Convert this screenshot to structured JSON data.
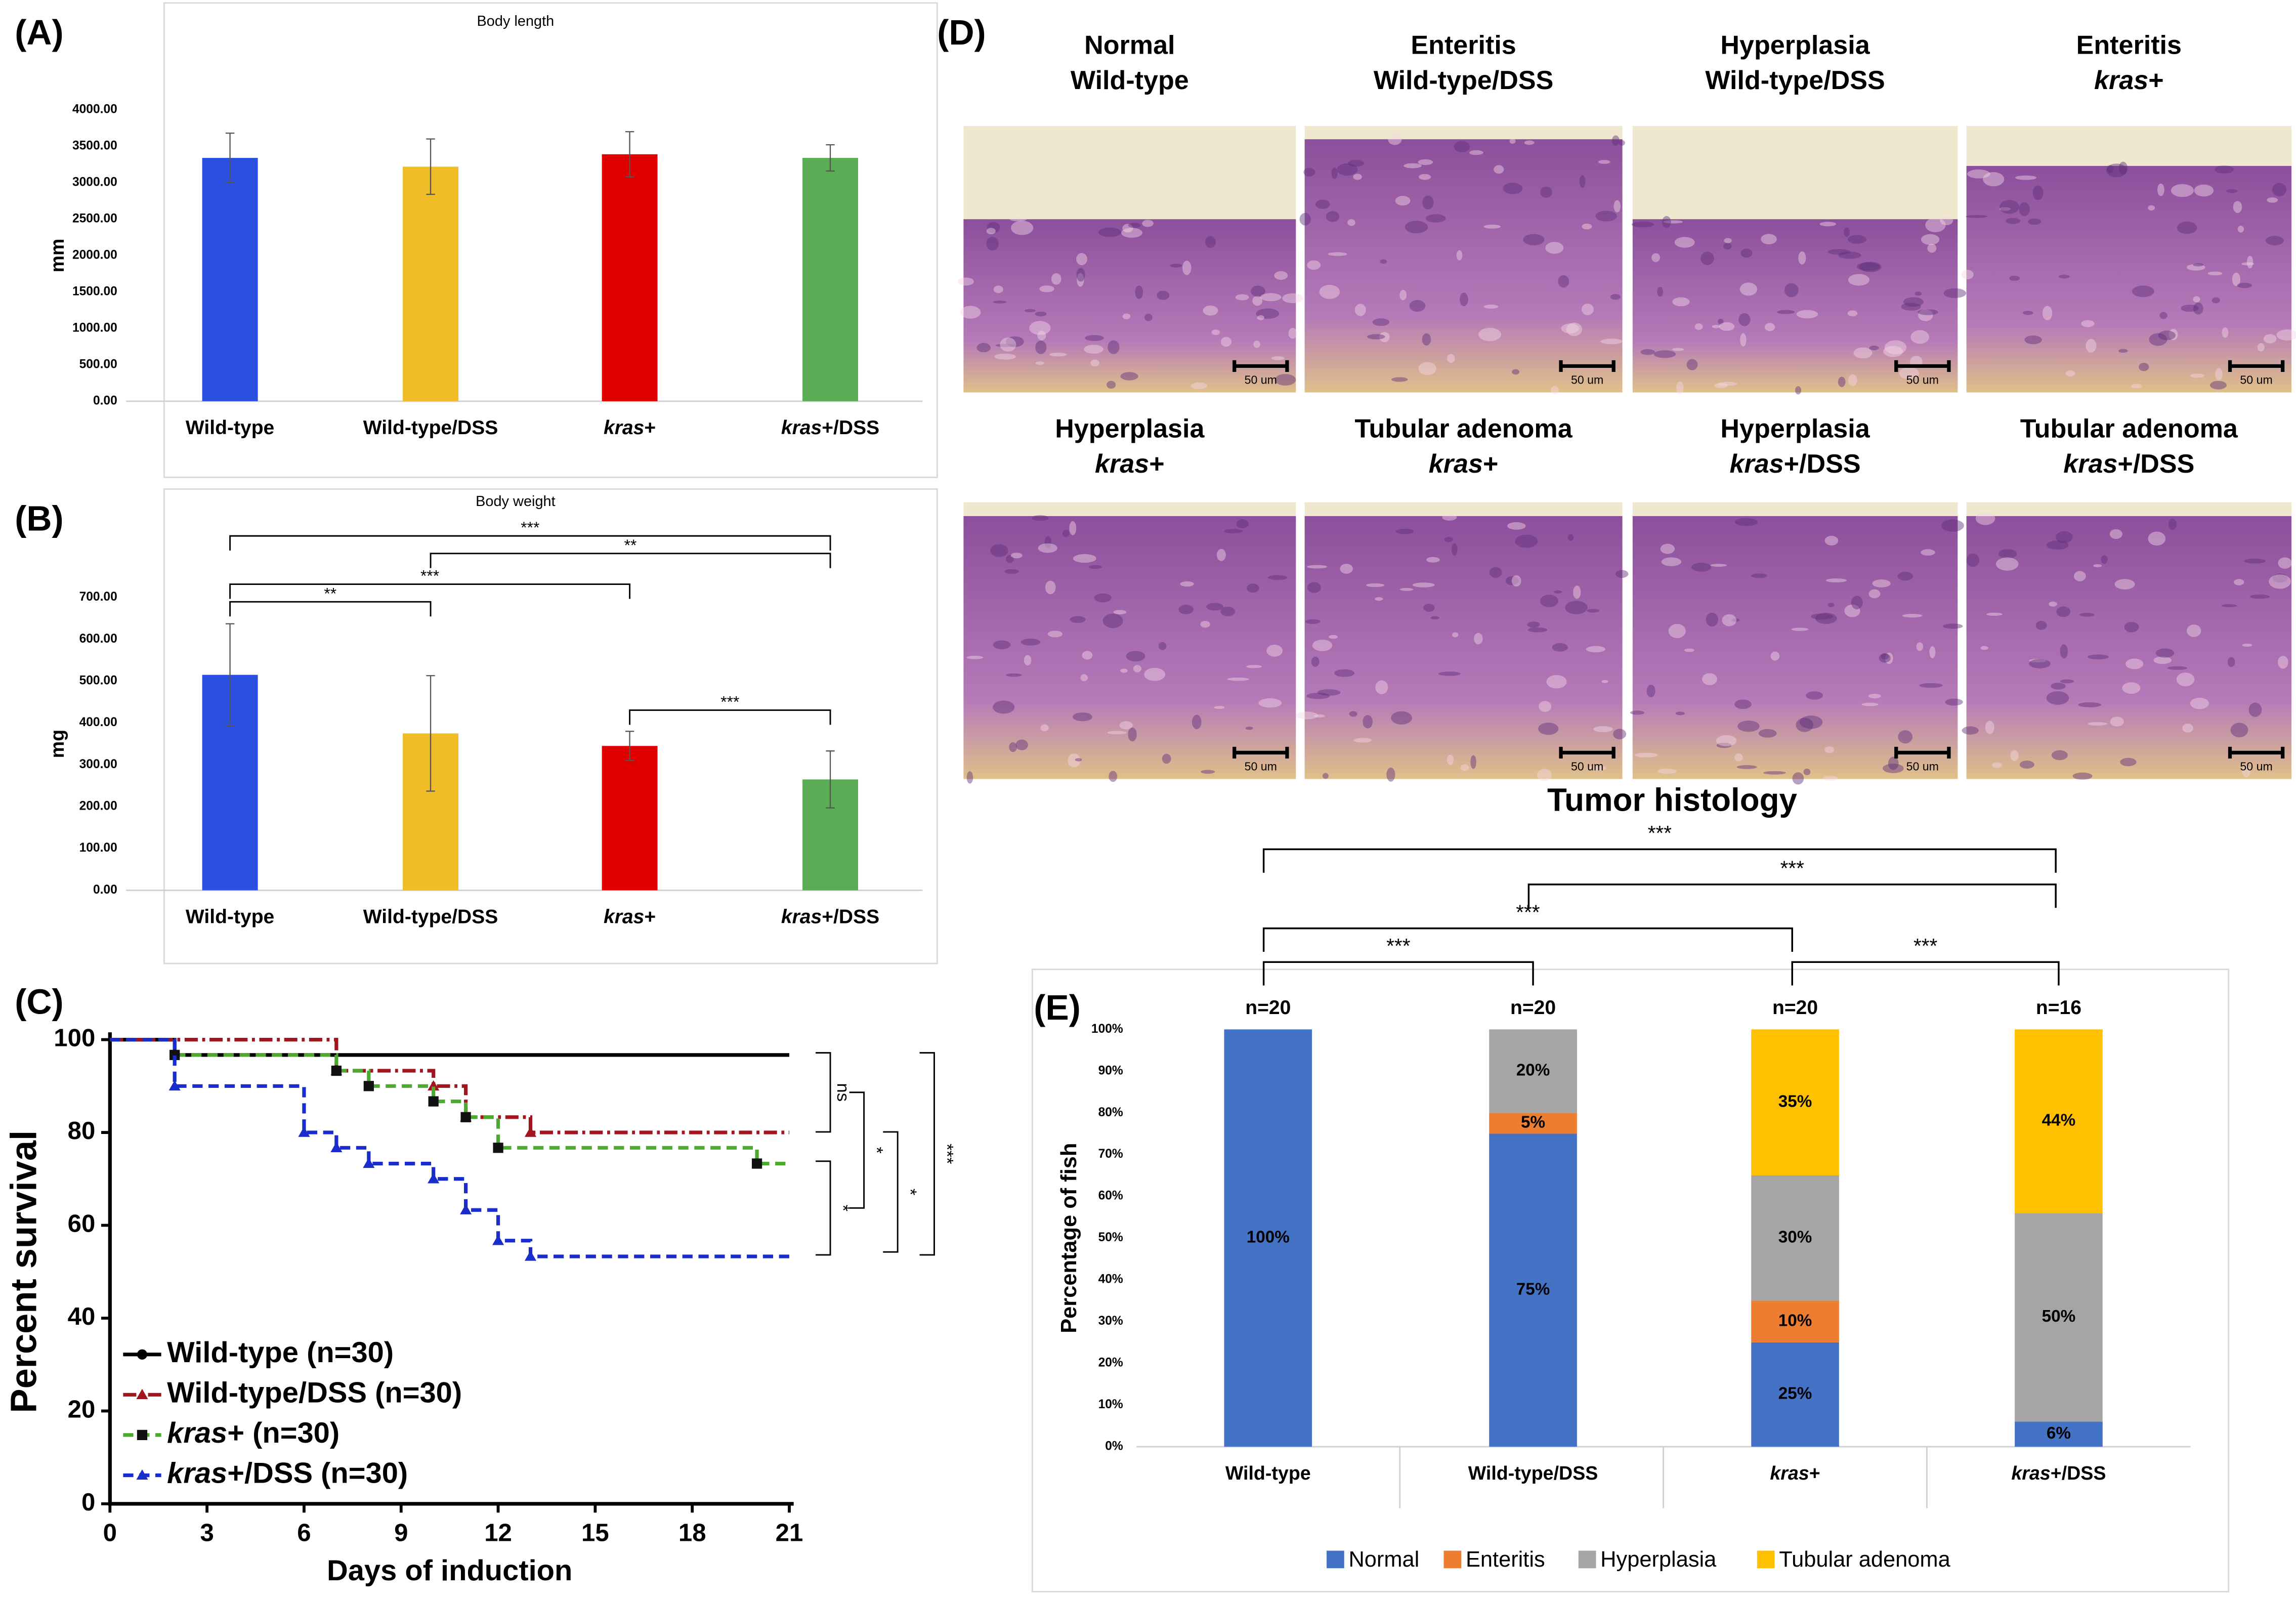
{
  "panel_labels": [
    "(A)",
    "(B)",
    "(C)",
    "(D)",
    "(E)"
  ],
  "chart_data": [
    {
      "type": "bar",
      "title": "Body length",
      "y_label": "mm",
      "categories": [
        "Wild-type",
        "Wild-type/DSS",
        "kras+",
        "kras+/DSS"
      ],
      "values": [
        3340,
        3220,
        3390,
        3340
      ],
      "errors": [
        340,
        380,
        310,
        180
      ],
      "colors": [
        "#2b50e0",
        "#f0bd28",
        "#e00000",
        "#5bad55"
      ],
      "ylim": [
        0,
        4000
      ],
      "yticks": [
        {
          "value": 0,
          "label": "0.00"
        },
        {
          "value": 500,
          "label": "500.00"
        },
        {
          "value": 1000,
          "label": "1000.00"
        },
        {
          "value": 1500,
          "label": "1500.00"
        },
        {
          "value": 2000,
          "label": "2000.00"
        },
        {
          "value": 2500,
          "label": "2500.00"
        },
        {
          "value": 3000,
          "label": "3000.00"
        },
        {
          "value": 3500,
          "label": "3500.00"
        },
        {
          "value": 4000,
          "label": "4000.00"
        }
      ],
      "significance": []
    },
    {
      "type": "bar",
      "title": "Body weight",
      "y_label": "mg",
      "categories": [
        "Wild-type",
        "Wild-type/DSS",
        "kras+",
        "kras+/DSS"
      ],
      "values": [
        515,
        375,
        345,
        265
      ],
      "errors": [
        122,
        138,
        35,
        68
      ],
      "colors": [
        "#2b50e0",
        "#f0bd28",
        "#e00000",
        "#5bad55"
      ],
      "ylim": [
        0,
        700
      ],
      "yticks": [
        {
          "value": 0,
          "label": "0.00"
        },
        {
          "value": 100,
          "label": "100.00"
        },
        {
          "value": 200,
          "label": "200.00"
        },
        {
          "value": 300,
          "label": "300.00"
        },
        {
          "value": 400,
          "label": "400.00"
        },
        {
          "value": 500,
          "label": "500.00"
        },
        {
          "value": 600,
          "label": "600.00"
        },
        {
          "value": 700,
          "label": "700.00"
        }
      ],
      "significance": [
        "***",
        "**",
        "***",
        "**",
        "***"
      ]
    },
    {
      "type": "line",
      "x_label": "Days of induction",
      "y_label": "Percent survival",
      "xlim": [
        0,
        21
      ],
      "xticks": [
        0,
        3,
        6,
        9,
        12,
        15,
        18,
        21
      ],
      "ylim": [
        0,
        100
      ],
      "yticks": [
        0,
        20,
        40,
        60,
        80,
        100
      ],
      "series": [
        {
          "name": "Wild-type (n=30)",
          "color": "#000000",
          "linestyle": "solid",
          "marker": "circle",
          "x": [
            0,
            2,
            21
          ],
          "values": [
            100,
            96.7,
            96.7
          ]
        },
        {
          "name": "Wild-type/DSS (n=30)",
          "color": "#a3141f",
          "linestyle": "dashdot",
          "marker": "triangle",
          "x": [
            0,
            7,
            10,
            11,
            13,
            21
          ],
          "values": [
            100,
            93.3,
            90,
            83.3,
            80,
            80
          ]
        },
        {
          "name": "kras+ (n=30)",
          "color": "#4caa2e",
          "linestyle": "dashed",
          "marker": "square",
          "x": [
            0,
            2,
            7,
            8,
            10,
            11,
            12,
            20,
            21
          ],
          "values": [
            100,
            96.7,
            93.3,
            90,
            86.7,
            83.3,
            76.7,
            73.3,
            73.3
          ]
        },
        {
          "name": "kras+/DSS (n=30)",
          "color": "#1a2ccc",
          "linestyle": "dashed",
          "marker": "triangle",
          "x": [
            0,
            2,
            6,
            7,
            8,
            10,
            11,
            12,
            13,
            21
          ],
          "values": [
            100,
            90,
            80,
            76.7,
            73.3,
            70,
            63.3,
            56.7,
            53.3,
            53.3
          ]
        }
      ],
      "significance": [
        "ns",
        "*",
        "*",
        "*",
        "***"
      ],
      "legend": "lower left"
    },
    {
      "type": "stacked_bar",
      "title": "Tumor histology",
      "y_label": "Percentage of fish",
      "categories": [
        "Wild-type",
        "Wild-type/DSS",
        "kras+",
        "kras+/DSS"
      ],
      "n_labels": [
        "n=20",
        "n=20",
        "n=20",
        "n=16"
      ],
      "series": [
        {
          "name": "Normal",
          "color": "#4472c4",
          "values": [
            100,
            75,
            25,
            6
          ],
          "value_labels": [
            "100%",
            "75%",
            "25%",
            "6%"
          ]
        },
        {
          "name": "Enteritis",
          "color": "#ed7d31",
          "values": [
            0,
            5,
            10,
            0
          ],
          "value_labels": [
            null,
            "5%",
            "10%",
            null
          ]
        },
        {
          "name": "Hyperplasia",
          "color": "#a5a5a5",
          "values": [
            0,
            20,
            30,
            50
          ],
          "value_labels": [
            null,
            "20%",
            "30%",
            "50%"
          ]
        },
        {
          "name": "Tubular adenoma",
          "color": "#ffc000",
          "values": [
            0,
            0,
            35,
            44
          ],
          "value_labels": [
            null,
            null,
            "35%",
            "44%"
          ]
        }
      ],
      "ylim": [
        0,
        100
      ],
      "yticks": [
        {
          "value": 0,
          "label": "0%"
        },
        {
          "value": 10,
          "label": "10%"
        },
        {
          "value": 20,
          "label": "20%"
        },
        {
          "value": 30,
          "label": "30%"
        },
        {
          "value": 40,
          "label": "40%"
        },
        {
          "value": 50,
          "label": "50%"
        },
        {
          "value": 60,
          "label": "60%"
        },
        {
          "value": 70,
          "label": "70%"
        },
        {
          "value": 80,
          "label": "80%"
        },
        {
          "value": 90,
          "label": "90%"
        },
        {
          "value": 100,
          "label": "100%"
        }
      ],
      "significance": [
        "***",
        "***",
        "***",
        "***",
        "***"
      ],
      "legend": "bottom"
    }
  ],
  "histology": {
    "panels": [
      {
        "title": [
          "Normal",
          "Wild-type"
        ],
        "scale_bar": "50 um"
      },
      {
        "title": [
          "Enteritis",
          "Wild-type/DSS"
        ],
        "scale_bar": "50 um"
      },
      {
        "title": [
          "Hyperplasia",
          "Wild-type/DSS"
        ],
        "scale_bar": "50 um"
      },
      {
        "title": [
          "Enteritis",
          "kras+"
        ],
        "scale_bar": "50 um"
      },
      {
        "title": [
          "Hyperplasia",
          "kras+"
        ],
        "scale_bar": "50 um"
      },
      {
        "title": [
          "Tubular adenoma",
          "kras+"
        ],
        "scale_bar": "50 um"
      },
      {
        "title": [
          "Hyperplasia",
          "kras+/DSS"
        ],
        "scale_bar": "50 um"
      },
      {
        "title": [
          "Tubular adenoma",
          "kras+/DSS"
        ],
        "scale_bar": "50 um"
      }
    ]
  }
}
